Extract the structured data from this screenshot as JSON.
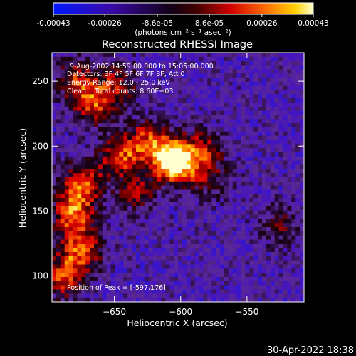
{
  "colorbar": {
    "tick_values": [
      -0.00043,
      -0.00026,
      -8.6e-05,
      8.6e-05,
      0.00026,
      0.00043
    ],
    "tick_labels": [
      "-0.00043",
      "-0.00026",
      "-8.6e-05",
      "8.6e-05",
      "0.00026",
      "0.00043"
    ],
    "unit_label": "(photons cm⁻² s⁻¹ asec⁻²)",
    "range": [
      -0.00043,
      0.00043
    ]
  },
  "chart_data": {
    "type": "heatmap",
    "title": "Reconstructed RHESSI Image",
    "xlabel": "Heliocentric X (arcsec)",
    "ylabel": "Heliocentric Y (arcsec)",
    "xlim": [
      -697,
      -507
    ],
    "ylim": [
      80,
      272
    ],
    "x_ticks": [
      -650,
      -600,
      -550
    ],
    "x_tick_labels": [
      "−650",
      "−600",
      "−550"
    ],
    "y_ticks": [
      100,
      150,
      200,
      250
    ],
    "y_tick_labels": [
      "100",
      "150",
      "200",
      "250"
    ],
    "annotations": [
      "9-Aug-2002 14:59:00.000 to 15:05:00.000",
      "Detectors: 3F 4F 5F 6F 7F 8F, Att 0",
      "Energy Range: 12.0 - 25.0 keV",
      "Clean    Total counts: 8.60E+03"
    ],
    "peak_label": "Position of Peak = [-597,176]",
    "peak_position": [
      -597,
      176
    ],
    "sources": [
      {
        "x": -601,
        "y": 187,
        "amp": 1.0
      },
      {
        "x": -612,
        "y": 192,
        "amp": 0.7
      },
      {
        "x": -583,
        "y": 198,
        "amp": 0.55
      },
      {
        "x": -646,
        "y": 192,
        "amp": 0.75
      },
      {
        "x": -626,
        "y": 206,
        "amp": 0.6
      },
      {
        "x": -674,
        "y": 172,
        "amp": 0.8
      },
      {
        "x": -681,
        "y": 148,
        "amp": 0.9
      },
      {
        "x": -676,
        "y": 120,
        "amp": 0.85
      },
      {
        "x": -688,
        "y": 98,
        "amp": 0.7
      },
      {
        "x": -666,
        "y": 232,
        "amp": 0.75
      },
      {
        "x": -679,
        "y": 252,
        "amp": 0.6
      },
      {
        "x": -648,
        "y": 248,
        "amp": 0.55
      },
      {
        "x": -633,
        "y": 165,
        "amp": 0.5
      },
      {
        "x": -578,
        "y": 174,
        "amp": 0.35
      },
      {
        "x": -526,
        "y": 140,
        "amp": 0.4
      }
    ]
  },
  "footer": {
    "date": "30-Apr-2022 18:38"
  }
}
